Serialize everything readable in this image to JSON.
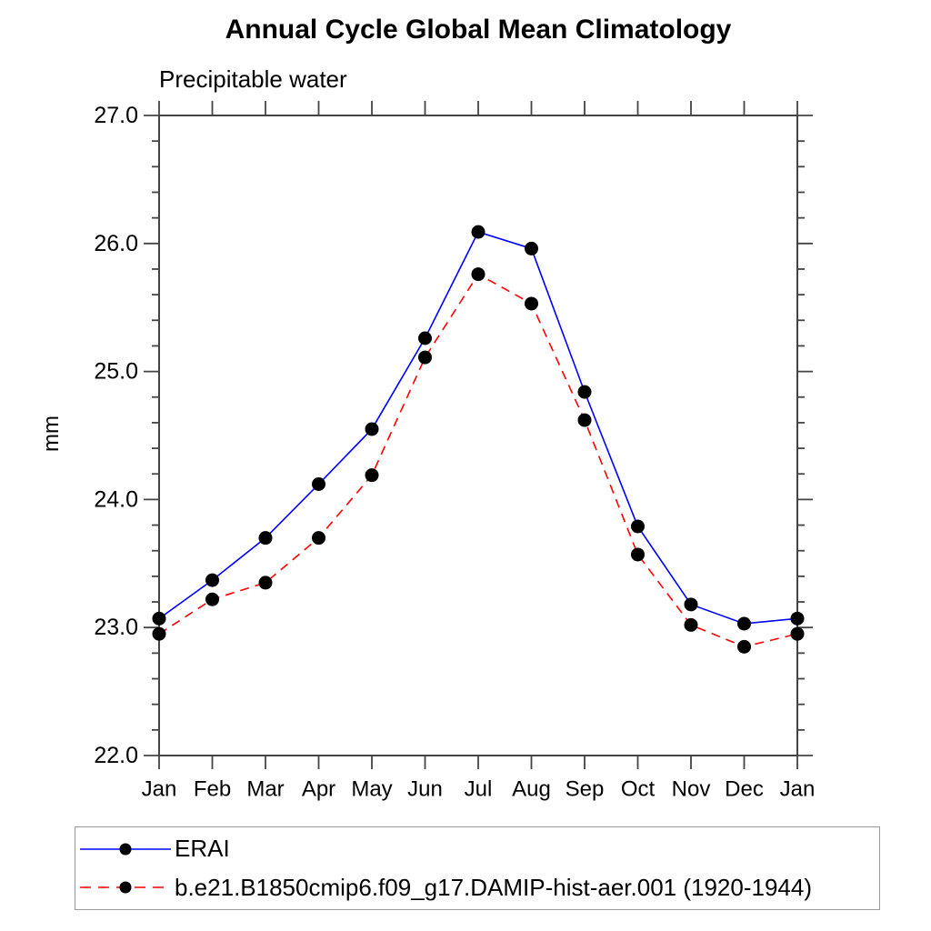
{
  "chart_data": {
    "type": "line",
    "title": "Annual Cycle Global Mean Climatology",
    "subtitle": "Precipitable water",
    "ylabel": "mm",
    "xlabel": "",
    "categories": [
      "Jan",
      "Feb",
      "Mar",
      "Apr",
      "May",
      "Jun",
      "Jul",
      "Aug",
      "Sep",
      "Oct",
      "Nov",
      "Dec",
      "Jan"
    ],
    "ylim": [
      22.0,
      27.0
    ],
    "ytick_interval": 1.0,
    "ytick_minor_interval": 0.2,
    "ytick_labels": [
      "22.0",
      "23.0",
      "24.0",
      "25.0",
      "26.0",
      "27.0"
    ],
    "grid": false,
    "legend_position": "bottom",
    "marker": "filled-circle",
    "marker_color": "#000000",
    "axis_color": "#444444",
    "text_color": "#000000",
    "series": [
      {
        "name": "ERAI",
        "color": "#0000ff",
        "line_style": "solid",
        "values": [
          23.07,
          23.37,
          23.7,
          24.12,
          24.55,
          25.26,
          26.09,
          25.96,
          24.84,
          23.79,
          23.18,
          23.03,
          23.07
        ]
      },
      {
        "name": "b.e21.B1850cmip6.f09_g17.DAMIP-hist-aer.001 (1920-1944)",
        "color": "#ff0000",
        "line_style": "dashed",
        "values": [
          22.95,
          23.22,
          23.35,
          23.7,
          24.19,
          25.11,
          25.76,
          25.53,
          24.62,
          23.57,
          23.02,
          22.85,
          22.95
        ]
      }
    ]
  }
}
